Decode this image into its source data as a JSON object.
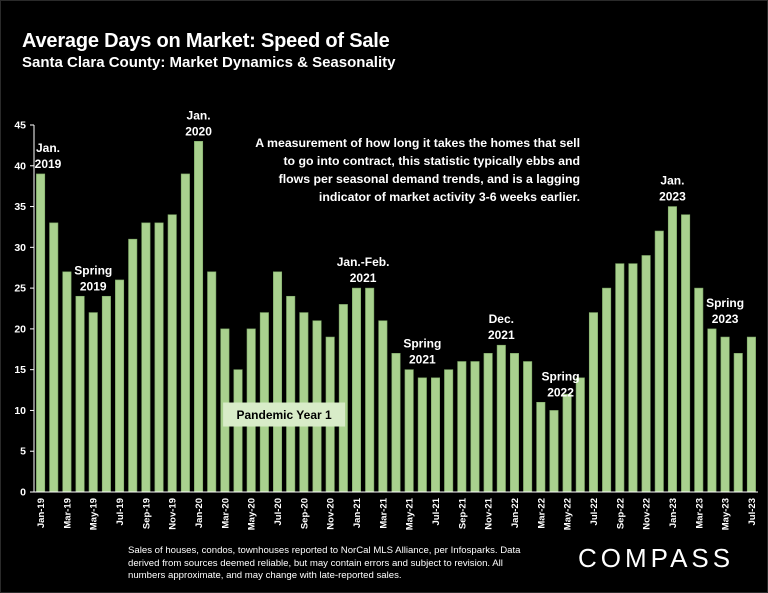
{
  "header": {
    "title": "Average Days on Market: Speed of Sale",
    "subtitle": "Santa Clara County: Market Dynamics & Seasonality"
  },
  "description": "A measurement of how long it takes the homes that sell to go into contract, this statistic typically ebbs and flows per seasonal demand trends, and is a lagging indicator of market activity 3-6 weeks earlier.",
  "footnote": "Sales of houses, condos, townhouses reported to NorCal MLS Alliance, per Infosparks. Data derived from sources deemed reliable, but may contain errors and subject to revision. All numbers approximate, and may change with late-reported sales.",
  "logo": "COMPASS",
  "colors": {
    "bar": "#a9d18e",
    "bar_stroke": "#7ea867",
    "background": "#000000",
    "text": "#ffffff",
    "badge_bg": "#d8ecc8",
    "badge_text": "#000000"
  },
  "chart_data": {
    "type": "bar",
    "ylim": [
      0,
      45
    ],
    "yticks": [
      0,
      5,
      10,
      15,
      20,
      25,
      30,
      35,
      40,
      45
    ],
    "grid": false,
    "categories": [
      "Jan-19",
      "Feb-19",
      "Mar-19",
      "Apr-19",
      "May-19",
      "Jun-19",
      "Jul-19",
      "Aug-19",
      "Sep-19",
      "Oct-19",
      "Nov-19",
      "Dec-19",
      "Jan-20",
      "Feb-20",
      "Mar-20",
      "Apr-20",
      "May-20",
      "Jun-20",
      "Jul-20",
      "Aug-20",
      "Sep-20",
      "Oct-20",
      "Nov-20",
      "Dec-20",
      "Jan-21",
      "Feb-21",
      "Mar-21",
      "Apr-21",
      "May-21",
      "Jun-21",
      "Jul-21",
      "Aug-21",
      "Sep-21",
      "Oct-21",
      "Nov-21",
      "Dec-21",
      "Jan-22",
      "Feb-22",
      "Mar-22",
      "Apr-22",
      "May-22",
      "Jun-22",
      "Jul-22",
      "Aug-22",
      "Sep-22",
      "Oct-22",
      "Nov-22",
      "Dec-22",
      "Jan-23",
      "Feb-23",
      "Mar-23",
      "Apr-23",
      "May-23",
      "Jun-23",
      "Jul-23"
    ],
    "xtick_labels": [
      "Jan-19",
      "",
      "Mar-19",
      "",
      "May-19",
      "",
      "Jul-19",
      "",
      "Sep-19",
      "",
      "Nov-19",
      "",
      "Jan-20",
      "",
      "Mar-20",
      "",
      "May-20",
      "",
      "Jul-20",
      "",
      "Sep-20",
      "",
      "Nov-20",
      "",
      "Jan-21",
      "",
      "Mar-21",
      "",
      "May-21",
      "",
      "Jul-21",
      "",
      "Sep-21",
      "",
      "Nov-21",
      "",
      "Jan-22",
      "",
      "Mar-22",
      "",
      "May-22",
      "",
      "Jul-22",
      "",
      "Sep-22",
      "",
      "Nov-22",
      "",
      "Jan-23",
      "",
      "Mar-23",
      "",
      "May-23",
      "",
      "Jul-23"
    ],
    "values": [
      39,
      33,
      27,
      24,
      22,
      24,
      26,
      31,
      33,
      33,
      34,
      39,
      43,
      27,
      20,
      15,
      20,
      22,
      27,
      24,
      22,
      21,
      19,
      23,
      25,
      25,
      21,
      17,
      15,
      14,
      14,
      15,
      16,
      16,
      17,
      18,
      17,
      16,
      11,
      10,
      12,
      14,
      22,
      25,
      28,
      28,
      29,
      32,
      35,
      34,
      25,
      20,
      19,
      17,
      19
    ],
    "annotations": [
      {
        "lines": [
          "Jan.",
          "2019"
        ],
        "index": 0,
        "value": 39
      },
      {
        "lines": [
          "Spring",
          "2019"
        ],
        "index": 4,
        "value": 24
      },
      {
        "lines": [
          "Jan.",
          "2020"
        ],
        "index": 12,
        "value": 43
      },
      {
        "lines": [
          "Jan.-Feb.",
          "2021"
        ],
        "index": 24.5,
        "value": 25
      },
      {
        "lines": [
          "Spring",
          "2021"
        ],
        "index": 29,
        "value": 15
      },
      {
        "lines": [
          "Dec.",
          "2021"
        ],
        "index": 35,
        "value": 18
      },
      {
        "lines": [
          "Spring",
          "2022"
        ],
        "index": 39.5,
        "value": 11
      },
      {
        "lines": [
          "Jan.",
          "2023"
        ],
        "index": 48,
        "value": 35
      },
      {
        "lines": [
          "Spring",
          "2023"
        ],
        "index": 52,
        "value": 20
      }
    ],
    "badge": {
      "label": "Pandemic Year 1",
      "index": 18.5,
      "value": 9.5
    }
  }
}
